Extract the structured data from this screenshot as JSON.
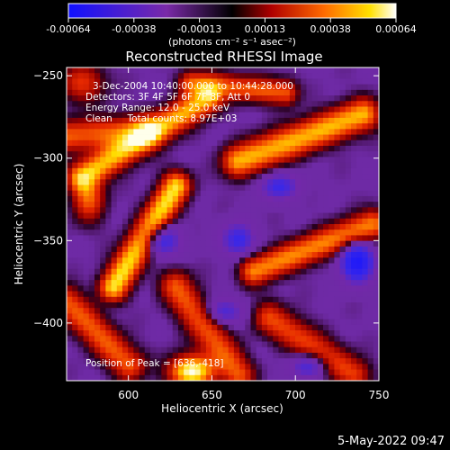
{
  "colorbar": {
    "tick_labels": [
      "-0.00064",
      "-0.00038",
      "-0.00013",
      "0.00013",
      "0.00038",
      "0.00064"
    ],
    "unit_label": "(photons cm⁻² s⁻¹ asec⁻²)",
    "range": [
      -0.00064,
      0.00064
    ]
  },
  "plot": {
    "title": "Reconstructed RHESSI Image",
    "info_lines": [
      "3-Dec-2004 10:40:00.000 to 10:44:28.000",
      "Detectors: 3F 4F 5F 6F 7F 8F, Att 0",
      "Energy Range: 12.0 - 25.0 keV",
      "Clean     Total counts: 8.97E+03"
    ],
    "peak_text": "Position of Peak = [636,-418]"
  },
  "footer": {
    "timestamp": "5-May-2022 09:47"
  },
  "chart_data": {
    "type": "heatmap",
    "title": "Reconstructed RHESSI Image",
    "xlabel": "Heliocentric X (arcsec)",
    "ylabel": "Heliocentric Y (arcsec)",
    "xlim": [
      563,
      750
    ],
    "ylim": [
      -435,
      -245
    ],
    "x_ticks": [
      600,
      650,
      700,
      750
    ],
    "y_ticks": [
      -250,
      -300,
      -350,
      -400
    ],
    "colorscale": [
      "#0000ff",
      "#6f2aa8",
      "#7e2aa6",
      "#2a0014",
      "#c00000",
      "#ff7a00",
      "#ffe000",
      "#ffffff"
    ],
    "value_range": [
      -0.00064,
      0.00064
    ],
    "peak_position": [
      636,
      -418
    ],
    "note": "bright diagonal ridges of positive flux over a purple background with blue negative patches"
  }
}
